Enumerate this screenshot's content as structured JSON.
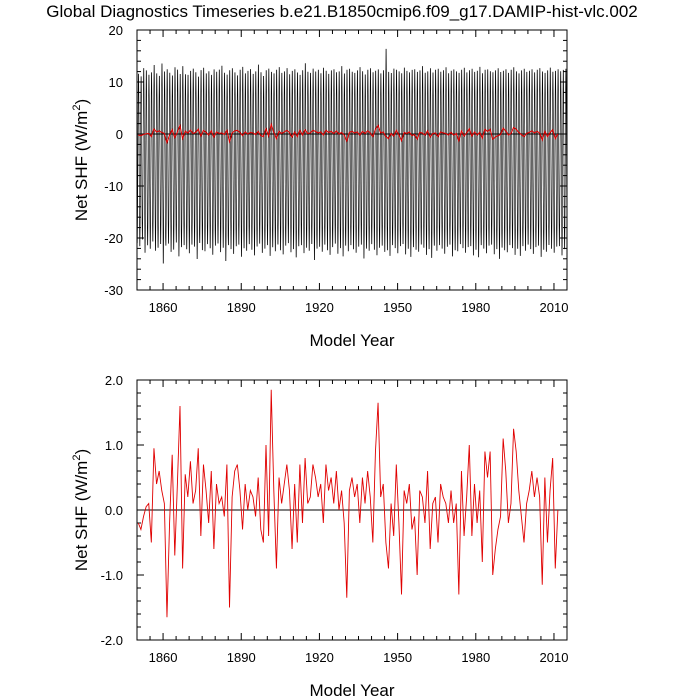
{
  "title": "Global Diagnostics Timeseries b.e21.B1850cmip6.f09_g17.DAMIP-hist-vlc.002",
  "chart_data": [
    {
      "type": "line",
      "ylabel": "Net SHF (W/m2)",
      "xlabel": "Model Year",
      "xlim": [
        1850,
        2015
      ],
      "ylim": [
        -30,
        20
      ],
      "x_ticks": [
        1860,
        1890,
        1920,
        1950,
        1980,
        2010
      ],
      "x_tick_labels": [
        "1860",
        "1890",
        "1920",
        "1950",
        "1980",
        "2010"
      ],
      "y_ticks": [
        -30,
        -20,
        -10,
        0,
        10,
        20
      ],
      "y_tick_labels": [
        "-30",
        "-20",
        "-10",
        "0",
        "10",
        "20"
      ],
      "reference_line": 0,
      "series": [
        {
          "color": "#000000",
          "description_monthly": "monthly values; seasonal cycle oscillating between winter minima and summer maxima",
          "annual_max": [
            12.1,
            11.6,
            13.2,
            12.8,
            11.9,
            12.4,
            13.8,
            12.2,
            11.7,
            14.1,
            12.6,
            13.0,
            12.3,
            11.8,
            13.4,
            12.9,
            12.1,
            13.6,
            12.0,
            11.9,
            12.7,
            13.1,
            12.4,
            11.6,
            12.8,
            13.3,
            12.2,
            12.6,
            11.9,
            13.0,
            12.5,
            12.9,
            13.7,
            12.3,
            12.0,
            12.8,
            13.2,
            12.4,
            11.8,
            12.9,
            13.5,
            12.2,
            12.7,
            13.0,
            12.1,
            12.6,
            13.9,
            12.4,
            11.7,
            12.8,
            13.1,
            12.5,
            12.2,
            12.9,
            13.4,
            12.3,
            12.6,
            13.2,
            12.0,
            12.7,
            13.0,
            12.4,
            11.9,
            12.8,
            14.2,
            12.5,
            12.3,
            13.1,
            12.6,
            12.9,
            12.2,
            13.3,
            12.7,
            12.1,
            12.8,
            13.0,
            12.4,
            12.6,
            13.6,
            12.2,
            12.9,
            13.1,
            12.5,
            12.3,
            12.8,
            13.4,
            12.6,
            12.0,
            12.9,
            13.2,
            12.4,
            12.7,
            13.0,
            12.2,
            12.8,
            17.0,
            12.5,
            12.3,
            13.1,
            12.9,
            12.6,
            12.2,
            13.3,
            12.7,
            12.4,
            12.9,
            13.0,
            12.5,
            12.8,
            13.6,
            12.3,
            12.6,
            13.2,
            12.4,
            12.9,
            13.1,
            12.5,
            12.8,
            13.4,
            12.2,
            12.7,
            13.0,
            12.6,
            12.3,
            12.9,
            13.3,
            12.4,
            12.8,
            13.1,
            12.5,
            12.7,
            13.5,
            12.2,
            12.9,
            13.0,
            12.6,
            12.4,
            12.8,
            13.2,
            12.5,
            12.7,
            13.0,
            12.3,
            12.9,
            13.4,
            12.6,
            12.2,
            12.8,
            13.1,
            12.5,
            12.7,
            13.0,
            12.4,
            12.9,
            13.2,
            12.6,
            12.3,
            12.8,
            13.3,
            12.5,
            12.7,
            13.0,
            12.6,
            12.9,
            13.1,
            12.4,
            12.8
          ],
          "annual_min": [
            -21.5,
            -22.1,
            -20.8,
            -23.4,
            -21.9,
            -22.6,
            -21.2,
            -23.0,
            -22.4,
            -21.7,
            -25.5,
            -22.0,
            -21.6,
            -23.2,
            -22.8,
            -21.4,
            -24.1,
            -22.3,
            -21.9,
            -22.7,
            -23.5,
            -21.8,
            -22.2,
            -24.6,
            -21.5,
            -22.9,
            -23.1,
            -21.7,
            -22.5,
            -23.8,
            -22.0,
            -21.6,
            -23.3,
            -22.4,
            -25.0,
            -21.9,
            -22.7,
            -23.6,
            -22.1,
            -21.8,
            -24.2,
            -22.5,
            -23.0,
            -21.7,
            -22.8,
            -23.9,
            -22.2,
            -21.6,
            -23.4,
            -22.6,
            -21.9,
            -24.0,
            -22.3,
            -23.1,
            -21.8,
            -22.9,
            -23.7,
            -22.0,
            -21.5,
            -23.3,
            -22.7,
            -24.3,
            -22.1,
            -21.9,
            -23.5,
            -22.4,
            -23.0,
            -21.7,
            -24.8,
            -22.6,
            -22.2,
            -23.2,
            -21.8,
            -22.9,
            -23.8,
            -22.3,
            -21.6,
            -23.6,
            -22.5,
            -24.1,
            -22.0,
            -23.1,
            -21.9,
            -22.7,
            -23.4,
            -22.2,
            -21.8,
            -24.5,
            -22.6,
            -23.0,
            -21.7,
            -22.8,
            -23.9,
            -22.4,
            -22.0,
            -23.3,
            -22.9,
            -24.0,
            -21.9,
            -22.5,
            -23.5,
            -22.1,
            -21.7,
            -23.7,
            -22.6,
            -24.2,
            -22.3,
            -22.8,
            -23.2,
            -21.8,
            -22.4,
            -23.8,
            -22.7,
            -24.4,
            -22.0,
            -23.0,
            -21.9,
            -22.6,
            -23.6,
            -22.2,
            -21.8,
            -24.1,
            -22.9,
            -23.1,
            -21.7,
            -22.5,
            -23.4,
            -22.3,
            -22.1,
            -23.9,
            -22.8,
            -24.3,
            -21.9,
            -22.6,
            -23.5,
            -22.0,
            -21.8,
            -23.7,
            -22.7,
            -24.6,
            -22.4,
            -22.9,
            -23.3,
            -21.9,
            -22.5,
            -23.8,
            -22.6,
            -24.0,
            -22.1,
            -23.0,
            -21.8,
            -22.7,
            -23.6,
            -22.3,
            -22.0,
            -24.2,
            -22.8,
            -23.2,
            -21.9,
            -22.6,
            -23.4,
            -22.2,
            -22.1,
            -23.9,
            -22.7
          ]
        },
        {
          "color": "#e00000",
          "description_annual": "annual mean",
          "values_ref": "panel2"
        }
      ]
    },
    {
      "type": "line",
      "ylabel": "Net SHF (W/m2)",
      "xlabel": "Model Year",
      "xlim": [
        1850,
        2015
      ],
      "ylim": [
        -2.0,
        2.0
      ],
      "x_ticks": [
        1860,
        1890,
        1920,
        1950,
        1980,
        2010
      ],
      "x_tick_labels": [
        "1860",
        "1890",
        "1920",
        "1950",
        "1980",
        "2010"
      ],
      "y_ticks": [
        -2.0,
        -1.0,
        0.0,
        1.0,
        2.0
      ],
      "y_tick_labels": [
        "-2.0",
        "-1.0",
        "0.0",
        "1.0",
        "2.0"
      ],
      "reference_line": 0,
      "series": [
        {
          "color": "#e00000",
          "x_start": 1850,
          "x_step": 1,
          "values": [
            -0.2,
            -0.3,
            -0.1,
            0.05,
            0.1,
            -0.5,
            0.95,
            0.4,
            0.6,
            0.3,
            0.1,
            -1.65,
            -0.2,
            0.85,
            -0.7,
            0.4,
            1.6,
            -0.9,
            0.55,
            0.2,
            0.75,
            0.1,
            0.3,
            0.95,
            -0.4,
            0.7,
            0.3,
            -0.2,
            0.6,
            -0.6,
            0.4,
            0.1,
            0.2,
            -0.1,
            0.7,
            -1.5,
            0.2,
            0.6,
            0.7,
            0.3,
            -0.3,
            0.4,
            0.0,
            0.3,
            0.2,
            -0.1,
            0.5,
            -0.3,
            -0.5,
            1.0,
            -0.4,
            1.85,
            0.3,
            -0.9,
            0.5,
            0.1,
            0.4,
            0.7,
            0.3,
            -0.6,
            0.4,
            -0.5,
            0.7,
            -0.2,
            0.8,
            0.1,
            0.2,
            0.7,
            0.5,
            0.2,
            0.4,
            -0.2,
            0.7,
            0.3,
            0.5,
            0.1,
            0.6,
            0.0,
            0.3,
            -0.2,
            -1.35,
            0.3,
            0.5,
            0.2,
            0.4,
            -0.2,
            0.5,
            0.1,
            0.6,
            0.2,
            -0.5,
            0.9,
            1.65,
            0.2,
            0.4,
            -0.5,
            -0.9,
            0.1,
            -0.4,
            0.7,
            -0.2,
            -1.3,
            0.3,
            0.1,
            0.4,
            -0.3,
            -0.1,
            -1.0,
            0.3,
            0.2,
            -0.2,
            0.6,
            -0.6,
            0.1,
            0.2,
            -0.5,
            0.4,
            0.2,
            0.1,
            -0.2,
            0.3,
            -0.2,
            0.1,
            -1.3,
            0.6,
            -0.4,
            0.2,
            1.0,
            -0.4,
            0.4,
            -0.2,
            0.3,
            -0.8,
            0.9,
            0.5,
            0.9,
            -1.0,
            -0.6,
            -0.3,
            -0.1,
            1.1,
            0.6,
            -0.2,
            0.1,
            1.25,
            0.9,
            0.3,
            -0.1,
            -0.5,
            0.1,
            0.3,
            0.6,
            0.2,
            0.5,
            0.2,
            -1.15,
            0.5,
            -0.5,
            0.3,
            0.8,
            -0.9,
            0.0
          ]
        }
      ]
    }
  ]
}
